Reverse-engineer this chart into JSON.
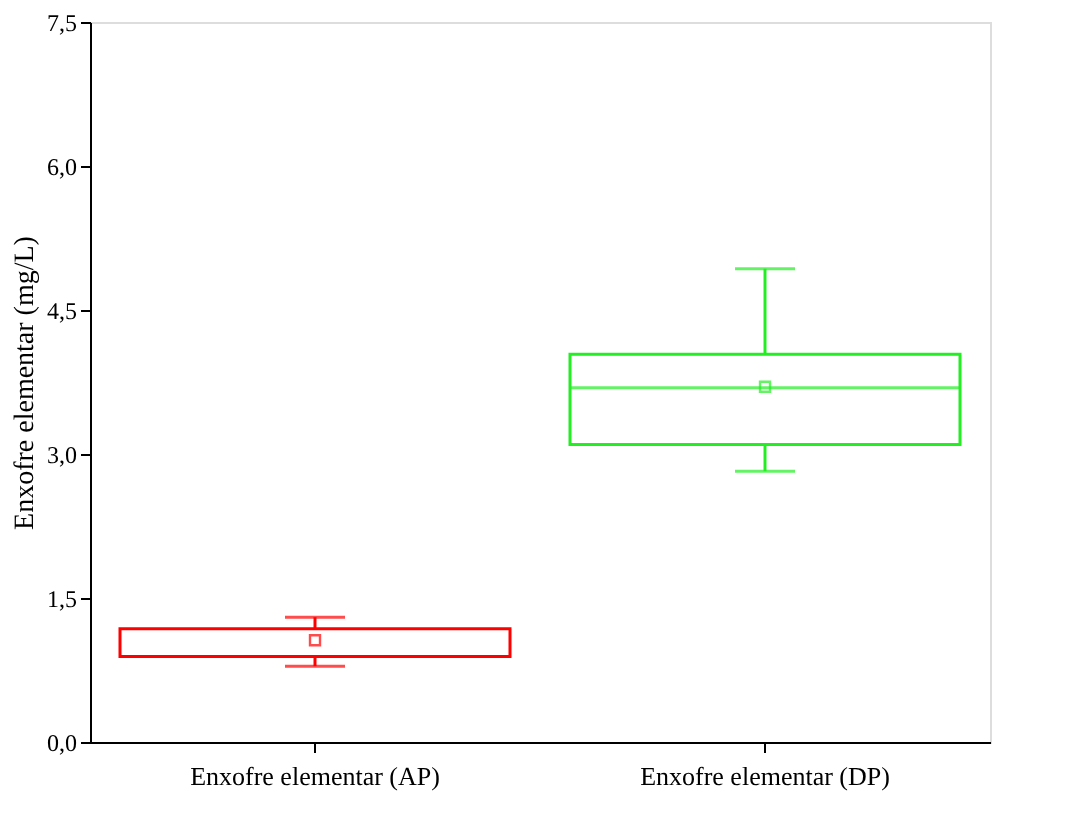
{
  "chart_data": {
    "type": "box",
    "ylabel": "Enxofre elementar (mg/L)",
    "categories": [
      "Enxofre elementar (AP)",
      "Enxofre elementar (DP)"
    ],
    "colors": [
      "#ff0000",
      "#22ee22"
    ],
    "boxes": [
      {
        "low": 0.79,
        "q1": 0.89,
        "median": 0.89,
        "q3": 1.18,
        "high": 1.3,
        "mean": 1.06
      },
      {
        "low": 2.82,
        "q1": 3.1,
        "median": 3.69,
        "q3": 4.04,
        "high": 4.93,
        "mean": 3.7
      }
    ],
    "ylim": [
      0,
      7.5
    ],
    "yticks": [
      {
        "value": 0,
        "label": "0,0"
      },
      {
        "value": 1.5,
        "label": "1,5"
      },
      {
        "value": 3,
        "label": "3,0"
      },
      {
        "value": 4.5,
        "label": "4,5"
      },
      {
        "value": 6,
        "label": "6,0"
      },
      {
        "value": 7.5,
        "label": "7,5"
      }
    ],
    "grid": false,
    "marker": "square"
  }
}
